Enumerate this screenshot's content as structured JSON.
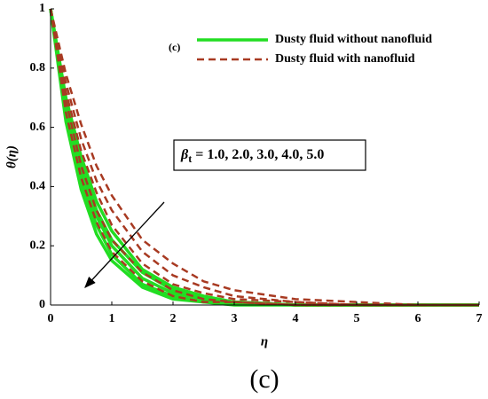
{
  "chart_data": {
    "type": "line",
    "xlabel": "η",
    "ylabel": "θ(η)",
    "caption": "(c)",
    "x": [
      0,
      0.25,
      0.5,
      0.75,
      1,
      1.5,
      2,
      2.5,
      3,
      4,
      5,
      6,
      7
    ],
    "xlim": [
      0,
      7
    ],
    "xticks": [
      0,
      1,
      2,
      3,
      4,
      5,
      6,
      7
    ],
    "ylim": [
      0,
      1
    ],
    "yticks": [
      0,
      0.2,
      0.4,
      0.6,
      0.8,
      1
    ],
    "legend": [
      {
        "name": "Dusty fluid without nanofluid",
        "color": "#22dd22",
        "dashed": false
      },
      {
        "name": "Dusty fluid with nanofluid",
        "color": "#a83a22",
        "dashed": true
      }
    ],
    "legend_tag": "(c)",
    "annotation": {
      "symbol": "β",
      "subscript": "t",
      "text": " = 1.0, 2.0, 3.0, 4.0, 5.0"
    },
    "series": [
      {
        "color": "#22dd22",
        "dashed": false,
        "values": [
          1,
          0.62,
          0.39,
          0.24,
          0.15,
          0.06,
          0.02,
          0.01,
          0,
          0,
          0,
          0,
          0
        ]
      },
      {
        "color": "#22dd22",
        "dashed": false,
        "values": [
          1,
          0.65,
          0.42,
          0.27,
          0.17,
          0.07,
          0.03,
          0.01,
          0.01,
          0,
          0,
          0,
          0
        ]
      },
      {
        "color": "#22dd22",
        "dashed": false,
        "values": [
          1,
          0.67,
          0.45,
          0.3,
          0.2,
          0.09,
          0.04,
          0.02,
          0.01,
          0,
          0,
          0,
          0
        ]
      },
      {
        "color": "#22dd22",
        "dashed": false,
        "values": [
          1,
          0.69,
          0.47,
          0.32,
          0.22,
          0.11,
          0.05,
          0.02,
          0.01,
          0,
          0,
          0,
          0
        ]
      },
      {
        "color": "#22dd22",
        "dashed": false,
        "values": [
          1,
          0.7,
          0.5,
          0.35,
          0.25,
          0.12,
          0.06,
          0.03,
          0.01,
          0,
          0,
          0,
          0
        ]
      },
      {
        "color": "#a83a22",
        "dashed": true,
        "values": [
          1,
          0.65,
          0.43,
          0.28,
          0.18,
          0.08,
          0.03,
          0.01,
          0.01,
          0,
          0,
          0,
          0
        ]
      },
      {
        "color": "#a83a22",
        "dashed": true,
        "values": [
          1,
          0.69,
          0.47,
          0.32,
          0.22,
          0.11,
          0.05,
          0.02,
          0.01,
          0,
          0,
          0,
          0
        ]
      },
      {
        "color": "#a83a22",
        "dashed": true,
        "values": [
          1,
          0.72,
          0.52,
          0.38,
          0.27,
          0.14,
          0.07,
          0.04,
          0.02,
          0.01,
          0,
          0,
          0
        ]
      },
      {
        "color": "#a83a22",
        "dashed": true,
        "values": [
          1,
          0.75,
          0.56,
          0.42,
          0.32,
          0.18,
          0.1,
          0.06,
          0.03,
          0.01,
          0,
          0,
          0
        ]
      },
      {
        "color": "#a83a22",
        "dashed": true,
        "values": [
          1,
          0.78,
          0.61,
          0.47,
          0.37,
          0.22,
          0.14,
          0.08,
          0.05,
          0.02,
          0.01,
          0,
          0
        ]
      }
    ]
  }
}
